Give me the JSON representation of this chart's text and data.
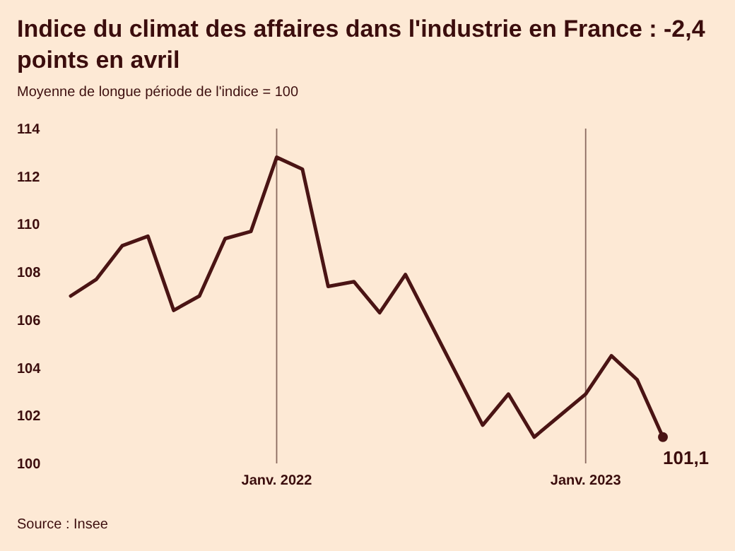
{
  "chart_data": {
    "type": "line",
    "title": "Indice du climat des affaires dans l'industrie en France : -2,4 points en avril",
    "subtitle": "Moyenne de longue période de l'indice = 100",
    "categories": [
      null,
      null,
      null,
      null,
      null,
      null,
      null,
      null,
      "Janv. 2022",
      null,
      null,
      null,
      null,
      null,
      null,
      null,
      null,
      null,
      null,
      null,
      "Janv. 2023",
      null,
      null,
      null
    ],
    "series": [
      {
        "color": "#4a1414",
        "values": [
          107.0,
          107.7,
          109.1,
          109.5,
          106.4,
          107.0,
          109.4,
          109.7,
          112.8,
          112.3,
          107.4,
          107.6,
          106.3,
          107.9,
          105.8,
          103.7,
          101.6,
          102.9,
          101.1,
          102.0,
          102.9,
          104.5,
          103.5,
          101.1
        ],
        "value_labels": [
          null,
          null,
          null,
          null,
          null,
          null,
          null,
          null,
          null,
          null,
          null,
          null,
          null,
          null,
          null,
          null,
          null,
          null,
          null,
          null,
          null,
          null,
          null,
          "101,1"
        ]
      }
    ],
    "ref_lines": [
      {
        "axis": "x",
        "value": "Janv. 2022",
        "color": "#8a6a60"
      },
      {
        "axis": "x",
        "value": "Janv. 2023",
        "color": "#8a6a60"
      }
    ],
    "ylim": [
      100,
      114
    ],
    "yticks": [
      100,
      102,
      104,
      106,
      108,
      110,
      112,
      114
    ],
    "marker": "none",
    "line_style": "solid",
    "annotations": [
      "Source : Insee"
    ]
  }
}
